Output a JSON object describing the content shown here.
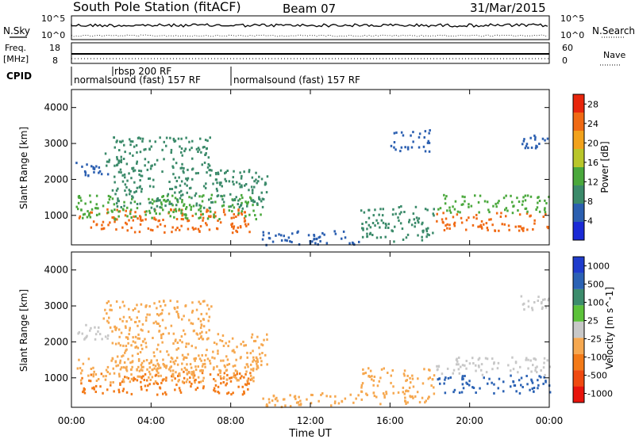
{
  "header": {
    "station": "South Pole Station (fitACF)",
    "beam": "Beam 07",
    "date": "31/Mar/2015"
  },
  "noise_panel": {
    "left_label": "N.Sky",
    "right_label": "N.Search",
    "left_ticks": [
      "10^5",
      "10^0"
    ],
    "right_ticks": [
      "10^5",
      "10^0"
    ]
  },
  "freq_panel": {
    "left_label_1": "Freq.",
    "left_label_2": "[MHz]",
    "left_ticks": [
      "18",
      "8"
    ],
    "right_label": "Nave",
    "right_ticks": [
      "60",
      "0"
    ]
  },
  "cpid_panel": {
    "label": "CPID",
    "programs": [
      {
        "name": "rbsp 200 RF",
        "start_hour": 2.1
      },
      {
        "name": "normalsound (fast) 157 RF",
        "start_hour": 0.0
      },
      {
        "name": "normalsound (fast) 157 RF",
        "start_hour": 8.3
      }
    ]
  },
  "colors": {
    "power": [
      "#1a2ad6",
      "#2b5fb0",
      "#3b8a6a",
      "#4aa83c",
      "#b9c62a",
      "#f2a21c",
      "#f06a14",
      "#e8260c"
    ],
    "velocity": [
      "#e8140c",
      "#f04a10",
      "#f37a18",
      "#f6a850",
      "#c8c8c8",
      "#5cc23a",
      "#3c8c6c",
      "#2b62b4",
      "#1f3ccc"
    ]
  },
  "chart_data": [
    {
      "type": "heatmap",
      "title": "",
      "quantity": "Power",
      "ylabel": "Slant Range [km]",
      "xlabel": "Time UT",
      "xlim": [
        "00:00",
        "24:00"
      ],
      "ylim": [
        180,
        4500
      ],
      "y_ticks": [
        "1000",
        "2000",
        "3000",
        "4000"
      ],
      "x_ticks": [
        "00:00",
        "04:00",
        "08:00",
        "12:00",
        "16:00",
        "20:00",
        "00:00"
      ],
      "colorbar": {
        "label": "Power [dB]",
        "ticks": [
          "4",
          "8",
          "12",
          "16",
          "20",
          "24",
          "28"
        ],
        "range": [
          0,
          30
        ]
      },
      "regions": [
        {
          "t": [
            0.3,
            9.0
          ],
          "r": [
            550,
            1200
          ],
          "value": 26
        },
        {
          "t": [
            0.2,
            9.5
          ],
          "r": [
            900,
            1600
          ],
          "value": 13
        },
        {
          "t": [
            2.0,
            9.8
          ],
          "r": [
            1200,
            2300
          ],
          "value": 10
        },
        {
          "t": [
            0.2,
            1.8
          ],
          "r": [
            2100,
            2500
          ],
          "value": 6
        },
        {
          "t": [
            1.5,
            7.0
          ],
          "r": [
            2300,
            3200
          ],
          "value": 11
        },
        {
          "t": [
            9.5,
            14.5
          ],
          "r": [
            200,
            600
          ],
          "value": 7
        },
        {
          "t": [
            14.5,
            18.2
          ],
          "r": [
            300,
            1300
          ],
          "value": 10
        },
        {
          "t": [
            18.3,
            24.0
          ],
          "r": [
            600,
            1100
          ],
          "value": 26
        },
        {
          "t": [
            18.3,
            24.0
          ],
          "r": [
            1100,
            1600
          ],
          "value": 12
        },
        {
          "t": [
            16.0,
            18.0
          ],
          "r": [
            2800,
            3400
          ],
          "value": 6
        },
        {
          "t": [
            22.5,
            24.0
          ],
          "r": [
            2900,
            3300
          ],
          "value": 6
        }
      ]
    },
    {
      "type": "heatmap",
      "title": "",
      "quantity": "Velocity",
      "ylabel": "Slant Range [km]",
      "xlabel": "Time UT",
      "xlim": [
        "00:00",
        "24:00"
      ],
      "ylim": [
        180,
        4500
      ],
      "y_ticks": [
        "1000",
        "2000",
        "3000",
        "4000"
      ],
      "x_ticks": [
        "00:00",
        "04:00",
        "08:00",
        "12:00",
        "16:00",
        "20:00",
        "00:00"
      ],
      "colorbar": {
        "label": "Velocity [m s^-1]",
        "ticks": [
          "1000",
          "500",
          "100",
          "25",
          "-25",
          "-100",
          "-500",
          "-1000"
        ],
        "range": [
          -1000,
          1000
        ]
      },
      "regions": [
        {
          "t": [
            0.3,
            9.0
          ],
          "r": [
            550,
            1200
          ],
          "value": -400
        },
        {
          "t": [
            0.2,
            9.5
          ],
          "r": [
            900,
            1600
          ],
          "value": -150
        },
        {
          "t": [
            2.0,
            9.8
          ],
          "r": [
            1200,
            2300
          ],
          "value": -300
        },
        {
          "t": [
            0.2,
            2.0
          ],
          "r": [
            2100,
            2500
          ],
          "value": 0
        },
        {
          "t": [
            1.5,
            7.0
          ],
          "r": [
            2300,
            3200
          ],
          "value": -200
        },
        {
          "t": [
            9.5,
            14.5
          ],
          "r": [
            200,
            600
          ],
          "value": -150
        },
        {
          "t": [
            14.5,
            18.2
          ],
          "r": [
            300,
            1300
          ],
          "value": -200
        },
        {
          "t": [
            18.3,
            24.0
          ],
          "r": [
            600,
            1100
          ],
          "value": 600
        },
        {
          "t": [
            18.3,
            24.0
          ],
          "r": [
            1100,
            1600
          ],
          "value": 50
        },
        {
          "t": [
            22.5,
            24.0
          ],
          "r": [
            2900,
            3300
          ],
          "value": 0
        }
      ]
    }
  ]
}
